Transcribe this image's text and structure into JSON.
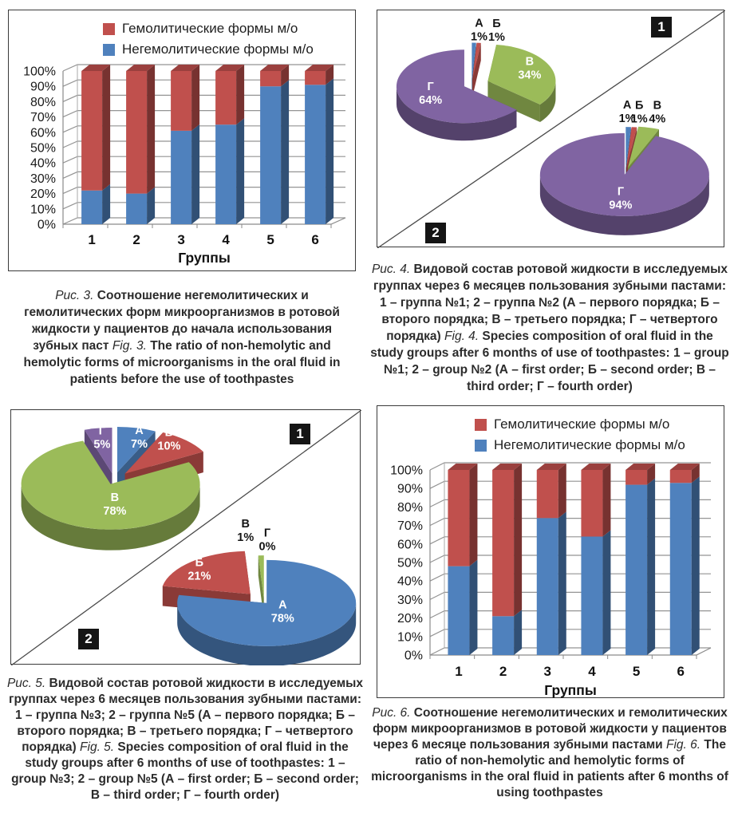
{
  "figures": {
    "fig3": {
      "ru_label": "Рис. 3.",
      "ru_text": "Соотношение негемолитических и гемолитических форм микроорганизмов в ротовой жидкости у пациентов до начала использования зубных паст",
      "en_label": "Fig. 3.",
      "en_text": "The ratio of non-hemolytic and hemolytic forms of microorganisms in the oral fluid in patients before the use of toothpastes"
    },
    "fig4": {
      "ru_label": "Рис. 4.",
      "ru_text": "Видовой состав ротовой жидкости в исследуемых группах через 6 месяцев пользования зубными пастами: 1 – группа №1; 2 – группа №2 (А – первого порядка; Б – второго порядка; В – третьего порядка; Г – четвертого порядка)",
      "en_label": "Fig. 4.",
      "en_text": "Species composition of oral fluid in the study groups after 6 months of use of toothpastes: 1 – group №1; 2 – group №2 (А – first order; Б – second order; В – third order; Г – fourth order)"
    },
    "fig5": {
      "ru_label": "Рис. 5.",
      "ru_text": "Видовой состав ротовой жидкости в исследуемых группах через 6 месяцев пользования зубными пастами: 1 – группа №3; 2 – группа №5 (А – первого порядка; Б – второго порядка; В – третьего порядка; Г – четвертого порядка)",
      "en_label": "Fig. 5.",
      "en_text": "Species composition of oral fluid in the study groups after 6 months of use of toothpastes: 1 – group №3; 2 – group №5 (А – first order; Б – second order; В – third order; Г – fourth order)"
    },
    "fig6": {
      "ru_label": "Рис. 6.",
      "ru_text": "Соотношение негемолитических и гемолитических форм микроорганизмов в ротовой жидкости у пациентов через 6 месяце пользования зубными пастами",
      "en_label": "Fig. 6.",
      "en_text": "The ratio of non-hemolytic and hemolytic forms of microorganisms in the oral fluid in patients after 6 months of using toothpastes"
    }
  },
  "colors": {
    "blue": "#4F81BD",
    "red": "#C0504D",
    "green": "#9BBB59",
    "purple": "#8064A2"
  },
  "chart_data": [
    {
      "id": "fig3",
      "type": "bar",
      "stacked": true,
      "categories": [
        "1",
        "2",
        "3",
        "4",
        "5",
        "6"
      ],
      "series": [
        {
          "name": "Негемолитические формы м/о",
          "color": "#4F81BD",
          "values": [
            22,
            20,
            61,
            65,
            90,
            91
          ]
        },
        {
          "name": "Гемолитические формы м/о",
          "color": "#C0504D",
          "values": [
            78,
            80,
            39,
            35,
            10,
            9
          ]
        }
      ],
      "legend": [
        {
          "label": "Гемолитические формы м/о",
          "color": "#C0504D"
        },
        {
          "label": "Негемолитические формы м/о",
          "color": "#4F81BD"
        }
      ],
      "legend_position": "top",
      "grid": true,
      "xlabel": "Группы",
      "ylabel": "",
      "ylim": [
        0,
        100
      ],
      "yticks": [
        "0%",
        "10%",
        "20%",
        "30%",
        "40%",
        "50%",
        "60%",
        "70%",
        "80%",
        "90%",
        "100%"
      ]
    },
    {
      "id": "fig4",
      "type": "pie",
      "title": "",
      "pies": [
        {
          "tag": "1",
          "slices": [
            {
              "label": "А",
              "value": 1,
              "color": "#4F81BD",
              "label_pos": "outside"
            },
            {
              "label": "Б",
              "value": 1,
              "color": "#C0504D",
              "label_pos": "outside"
            },
            {
              "label": "В",
              "value": 34,
              "color": "#9BBB59",
              "label_pos": "inside"
            },
            {
              "label": "Г",
              "value": 64,
              "color": "#8064A2",
              "label_pos": "inside"
            }
          ]
        },
        {
          "tag": "2",
          "slices": [
            {
              "label": "А",
              "value": 1,
              "color": "#4F81BD",
              "label_pos": "outside"
            },
            {
              "label": "Б",
              "value": 1,
              "color": "#C0504D",
              "label_pos": "outside"
            },
            {
              "label": "В",
              "value": 4,
              "color": "#9BBB59",
              "label_pos": "outside"
            },
            {
              "label": "Г",
              "value": 94,
              "color": "#8064A2",
              "label_pos": "inside"
            }
          ]
        }
      ]
    },
    {
      "id": "fig5",
      "type": "pie",
      "title": "",
      "pies": [
        {
          "tag": "1",
          "slices": [
            {
              "label": "А",
              "value": 7,
              "color": "#4F81BD",
              "label_pos": "inside"
            },
            {
              "label": "Б",
              "value": 10,
              "color": "#C0504D",
              "label_pos": "inside"
            },
            {
              "label": "В",
              "value": 78,
              "color": "#9BBB59",
              "label_pos": "inside"
            },
            {
              "label": "Г",
              "value": 5,
              "color": "#8064A2",
              "label_pos": "inside"
            }
          ]
        },
        {
          "tag": "2",
          "slices": [
            {
              "label": "А",
              "value": 78,
              "color": "#4F81BD",
              "label_pos": "inside"
            },
            {
              "label": "Б",
              "value": 21,
              "color": "#C0504D",
              "label_pos": "inside"
            },
            {
              "label": "В",
              "value": 1,
              "color": "#9BBB59",
              "label_pos": "outside"
            },
            {
              "label": "Г",
              "value": 0,
              "color": "#8064A2",
              "label_pos": "outside"
            }
          ]
        }
      ]
    },
    {
      "id": "fig6",
      "type": "bar",
      "stacked": true,
      "categories": [
        "1",
        "2",
        "3",
        "4",
        "5",
        "6"
      ],
      "series": [
        {
          "name": "Негемолитические формы м/о",
          "color": "#4F81BD",
          "values": [
            48,
            21,
            74,
            64,
            92,
            93
          ]
        },
        {
          "name": "Гемолитические формы м/о",
          "color": "#C0504D",
          "values": [
            52,
            79,
            26,
            36,
            8,
            7
          ]
        }
      ],
      "legend": [
        {
          "label": "Гемолитические формы м/о",
          "color": "#C0504D"
        },
        {
          "label": "Негемолитические формы м/о",
          "color": "#4F81BD"
        }
      ],
      "legend_position": "top",
      "grid": true,
      "xlabel": "Группы",
      "ylabel": "",
      "ylim": [
        0,
        100
      ],
      "yticks": [
        "0%",
        "10%",
        "20%",
        "30%",
        "40%",
        "50%",
        "60%",
        "70%",
        "80%",
        "90%",
        "100%"
      ]
    }
  ]
}
